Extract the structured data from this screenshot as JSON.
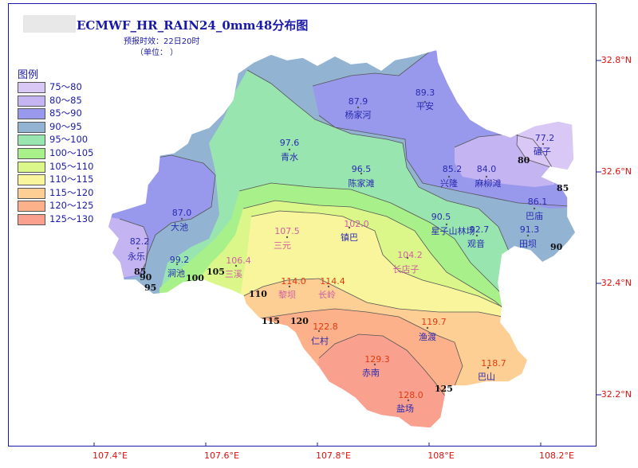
{
  "title": "ECMWF_HR_RAIN24_0mm48分布图",
  "forecast_label": "预报时效：22日20时",
  "unit_label": "（单位：    ）",
  "legend": {
    "title": "图例",
    "items": [
      {
        "label": "75～80",
        "color": "#d9c8f6"
      },
      {
        "label": "80～85",
        "color": "#c4b4f2"
      },
      {
        "label": "85～90",
        "color": "#9898ec"
      },
      {
        "label": "90～95",
        "color": "#93b3d3"
      },
      {
        "label": "95～100",
        "color": "#98e5b0"
      },
      {
        "label": "100～105",
        "color": "#a8f08a"
      },
      {
        "label": "105～110",
        "color": "#dbf789"
      },
      {
        "label": "110～115",
        "color": "#f8f59c"
      },
      {
        "label": "115～120",
        "color": "#fdcf95"
      },
      {
        "label": "120～125",
        "color": "#fdb18a"
      },
      {
        "label": "125～130",
        "color": "#f9a08f"
      }
    ]
  },
  "lat_labels": [
    "32.8°N",
    "32.6°N",
    "32.4°N",
    "32.2°N"
  ],
  "lon_labels": [
    "107.4°E",
    "107.6°E",
    "107.8°E",
    "108°E",
    "108.2°E"
  ],
  "contour_labels": [
    "80",
    "85",
    "85",
    "90",
    "90",
    "95",
    "100",
    "105",
    "110",
    "115",
    "120",
    "125"
  ],
  "stations": [
    {
      "value": "89.3",
      "name": "平安"
    },
    {
      "value": "87.9",
      "name": "杨家河"
    },
    {
      "value": "77.2",
      "name": "碾子"
    },
    {
      "value": "97.6",
      "name": "青水"
    },
    {
      "value": "96.5",
      "name": "陈家滩"
    },
    {
      "value": "85.2",
      "name": "兴隆"
    },
    {
      "value": "84.0",
      "name": "麻柳滩"
    },
    {
      "value": "86.1",
      "name": "巴庙"
    },
    {
      "value": "87.0",
      "name": "大池"
    },
    {
      "value": "90.5",
      "name": "星子山林场"
    },
    {
      "value": "92.7",
      "name": "观音"
    },
    {
      "value": "91.3",
      "name": "田坝"
    },
    {
      "value": "82.2",
      "name": "永乐"
    },
    {
      "value": "99.2",
      "name": "涧池"
    },
    {
      "value": "106.4",
      "name": "三溪"
    },
    {
      "value": "107.5",
      "name": "三元"
    },
    {
      "value": "102.0",
      "name": "镇巴"
    },
    {
      "value": "104.2",
      "name": "长店子"
    },
    {
      "value": "114.0",
      "name": "黎坝"
    },
    {
      "value": "114.4",
      "name": "长岭"
    },
    {
      "value": "122.8",
      "name": "仁村"
    },
    {
      "value": "119.7",
      "name": "渔渡"
    },
    {
      "value": "118.7",
      "name": "巴山"
    },
    {
      "value": "129.3",
      "name": "赤南"
    },
    {
      "value": "128.0",
      "name": "盐场"
    }
  ]
}
